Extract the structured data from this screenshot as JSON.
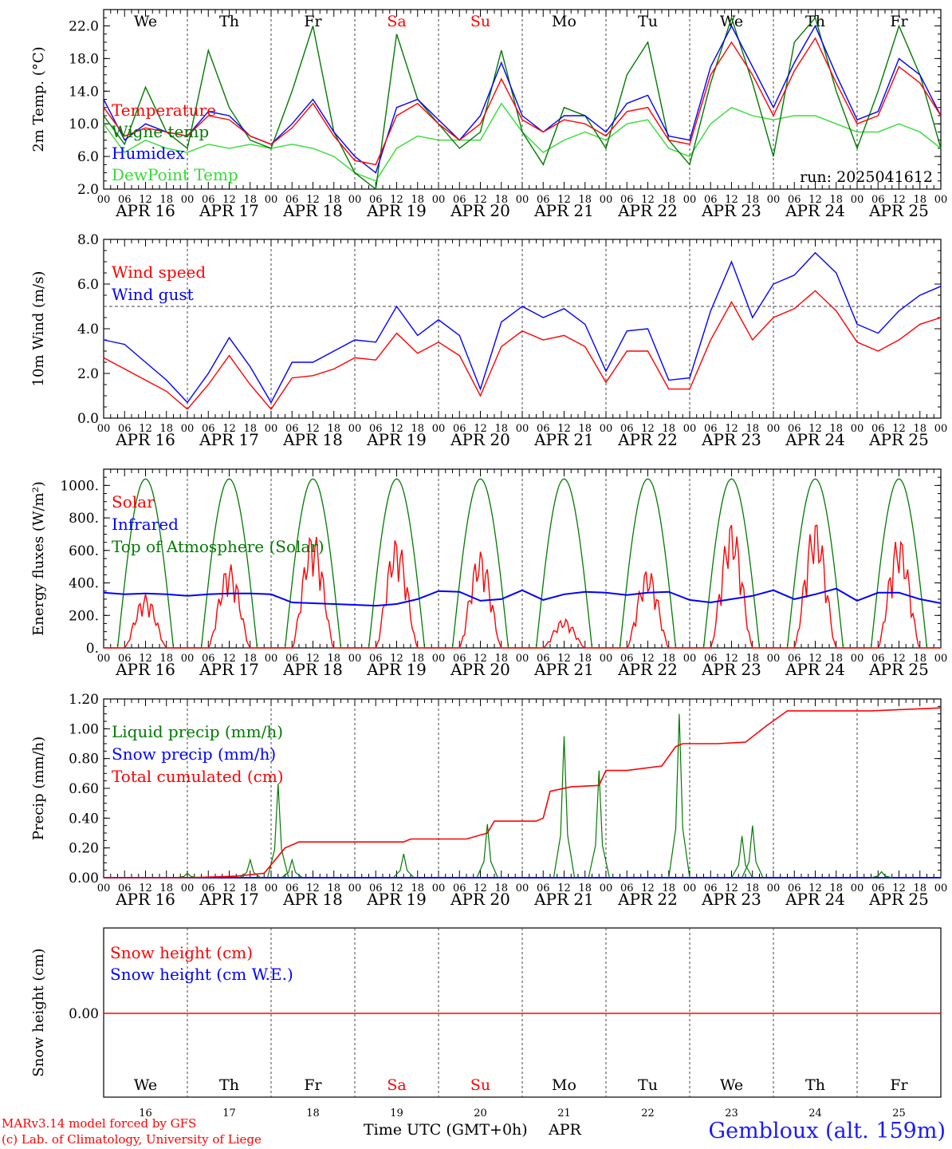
{
  "credits": {
    "line1": "MARv3.14 model forced by GFS",
    "line2": "(c) Lab. of Climatology, University of Liege"
  },
  "xaxis_label": "Time UTC (GMT+0h)",
  "month_label": "APR",
  "station": "Gembloux (alt. 159m)",
  "colors": {
    "red": "#ff0000",
    "dark_green": "#007a00",
    "blue": "#0000ff",
    "light_green": "#33dd33",
    "weekend": "#ff0000"
  },
  "chart_data": [
    {
      "type": "line",
      "ylabel": "2m Temp. (°C)",
      "ylim": [
        2,
        24
      ],
      "yticks": [
        "2.0",
        "6.0",
        "10.0",
        "14.0",
        "18.0",
        "22.0"
      ],
      "ytick_values": [
        2,
        6,
        10,
        14,
        18,
        22
      ],
      "annotation": "run: 2025041612",
      "weekdays": [
        {
          "label": "We",
          "weekend": false
        },
        {
          "label": "Th",
          "weekend": false
        },
        {
          "label": "Fr",
          "weekend": false
        },
        {
          "label": "Sa",
          "weekend": true
        },
        {
          "label": "Su",
          "weekend": true
        },
        {
          "label": "Mo",
          "weekend": false
        },
        {
          "label": "Tu",
          "weekend": false
        },
        {
          "label": "We",
          "weekend": false
        },
        {
          "label": "Th",
          "weekend": false
        },
        {
          "label": "Fr",
          "weekend": false
        }
      ],
      "x_hours": [
        0,
        6,
        12,
        18,
        24,
        30,
        36,
        42,
        48,
        54,
        60,
        66,
        72,
        78,
        84,
        90,
        96,
        102,
        108,
        114,
        120,
        126,
        132,
        138,
        144,
        150,
        156,
        162,
        168,
        174,
        180,
        186,
        192,
        198,
        204,
        210,
        216,
        222,
        228,
        234,
        240
      ],
      "series": [
        {
          "name": "Temperature",
          "color": "#ff0000",
          "values": [
            12,
            8.5,
            9.5,
            9,
            8.5,
            11,
            10.5,
            8.5,
            7.5,
            9.5,
            12.5,
            8.5,
            5.5,
            5,
            11,
            12.5,
            10,
            8,
            10,
            15.5,
            10.5,
            9,
            10.5,
            10,
            8.5,
            11.5,
            12,
            8,
            7.5,
            16,
            20,
            16,
            11,
            16.5,
            20.5,
            15,
            10,
            11,
            17,
            15,
            11
          ]
        },
        {
          "name": "Wigne temp",
          "color": "#007a00",
          "values": [
            11,
            7.5,
            14.5,
            9,
            7,
            19,
            12,
            8,
            7,
            14,
            22,
            9,
            4,
            2,
            21,
            13,
            10,
            7,
            9,
            19,
            9,
            5,
            12,
            11,
            7,
            16,
            20,
            8,
            5,
            15,
            23,
            15,
            6,
            20,
            23,
            14,
            7,
            14,
            22,
            16,
            7
          ]
        },
        {
          "name": "Humidex",
          "color": "#0000ff",
          "values": [
            13,
            8,
            10,
            9,
            8.5,
            11.5,
            11,
            8.5,
            7.5,
            10,
            13,
            9,
            6,
            4,
            12,
            13,
            10.5,
            8,
            11,
            17.5,
            11,
            9,
            11,
            11,
            9,
            12.5,
            13.5,
            8.5,
            8,
            17,
            22,
            17,
            12,
            17.5,
            22,
            16,
            10.5,
            11.5,
            18,
            16,
            11
          ]
        },
        {
          "name": "DewPoint Temp",
          "color": "#33dd33",
          "values": [
            10,
            6.5,
            8,
            7,
            6.5,
            7.5,
            7,
            7.5,
            7,
            7.5,
            7,
            6,
            4,
            3,
            7,
            8.5,
            8,
            8,
            8,
            12.5,
            9,
            6.5,
            8,
            9,
            8,
            10,
            10.5,
            7,
            6,
            10,
            12,
            11,
            10.5,
            11,
            11,
            10,
            9,
            9,
            10,
            9,
            7
          ]
        }
      ]
    },
    {
      "type": "line",
      "ylabel": "10m Wind (m/s)",
      "ylim": [
        0,
        8
      ],
      "yticks": [
        "0.0",
        "2.0",
        "4.0",
        "6.0",
        "8.0"
      ],
      "ytick_values": [
        0,
        2,
        4,
        6,
        8
      ],
      "reference_line": 5,
      "x_hours": [
        0,
        6,
        12,
        18,
        24,
        30,
        36,
        42,
        48,
        54,
        60,
        66,
        72,
        78,
        84,
        90,
        96,
        102,
        108,
        114,
        120,
        126,
        132,
        138,
        144,
        150,
        156,
        162,
        168,
        174,
        180,
        186,
        192,
        198,
        204,
        210,
        216,
        222,
        228,
        234,
        240
      ],
      "series": [
        {
          "name": "Wind speed",
          "color": "#ff0000",
          "values": [
            2.7,
            2.2,
            1.7,
            1.2,
            0.4,
            1.5,
            2.8,
            1.5,
            0.4,
            1.8,
            1.9,
            2.2,
            2.7,
            2.6,
            3.8,
            2.9,
            3.4,
            2.8,
            1,
            3.2,
            3.9,
            3.5,
            3.7,
            3.2,
            1.6,
            3,
            3,
            1.3,
            1.3,
            3.5,
            5.2,
            3.5,
            4.5,
            4.9,
            5.7,
            4.8,
            3.4,
            3,
            3.5,
            4.2,
            4.5
          ]
        },
        {
          "name": "Wind gust",
          "color": "#0000ff",
          "values": [
            3.5,
            3.3,
            2.5,
            1.7,
            0.7,
            2,
            3.6,
            2.3,
            0.7,
            2.5,
            2.5,
            3,
            3.5,
            3.4,
            5,
            3.7,
            4.4,
            3.7,
            1.3,
            4.3,
            5,
            4.5,
            4.9,
            4.2,
            2.1,
            3.9,
            4,
            1.7,
            1.8,
            4.8,
            7,
            4.5,
            6,
            6.4,
            7.4,
            6.5,
            4.2,
            3.8,
            4.8,
            5.5,
            5.9
          ]
        }
      ]
    },
    {
      "type": "line",
      "ylabel": "Energy fluxes (W/m²)",
      "ylim": [
        0,
        1100
      ],
      "yticks": [
        "0.",
        "200.",
        "400.",
        "600.",
        "800.",
        "1000."
      ],
      "ytick_values": [
        0,
        200,
        400,
        600,
        800,
        1000
      ],
      "solar_peaks": [
        330,
        520,
        720,
        680,
        600,
        180,
        490,
        780,
        790,
        690
      ],
      "infrared_values": [
        340,
        330,
        335,
        330,
        320,
        330,
        335,
        335,
        330,
        280,
        275,
        270,
        265,
        260,
        270,
        300,
        350,
        345,
        290,
        300,
        355,
        295,
        330,
        345,
        340,
        325,
        340,
        345,
        295,
        280,
        300,
        320,
        355,
        300,
        330,
        365,
        290,
        340,
        340,
        300,
        275
      ],
      "toa_peak": 1040,
      "series": [
        {
          "name": "Solar",
          "color": "#ff0000"
        },
        {
          "name": "Infrared",
          "color": "#0000ff"
        },
        {
          "name": "Top of Atmosphere (Solar)",
          "color": "#007a00"
        }
      ]
    },
    {
      "type": "line",
      "ylabel": "Precip (mm/h)",
      "ylim": [
        0,
        1.2
      ],
      "yticks": [
        "0.00",
        "0.20",
        "0.40",
        "0.60",
        "0.80",
        "1.00",
        "1.20"
      ],
      "ytick_values": [
        0,
        0.2,
        0.4,
        0.6,
        0.8,
        1.0,
        1.2
      ],
      "liquid_spikes": [
        {
          "hour": 24,
          "value": 0.03
        },
        {
          "hour": 42,
          "value": 0.12
        },
        {
          "hour": 50,
          "value": 0.63
        },
        {
          "hour": 54,
          "value": 0.12
        },
        {
          "hour": 86,
          "value": 0.16
        },
        {
          "hour": 110,
          "value": 0.36
        },
        {
          "hour": 132,
          "value": 0.95
        },
        {
          "hour": 142,
          "value": 0.72
        },
        {
          "hour": 165,
          "value": 1.1
        },
        {
          "hour": 183,
          "value": 0.28
        },
        {
          "hour": 186,
          "value": 0.35
        },
        {
          "hour": 223,
          "value": 0.04
        }
      ],
      "cumulative": {
        "x_hours": [
          0,
          24,
          38,
          46,
          52,
          56,
          66,
          86,
          88,
          104,
          110,
          112,
          124,
          126,
          128,
          134,
          142,
          144,
          150,
          160,
          164,
          166,
          176,
          184,
          190,
          196,
          220,
          240
        ],
        "values": [
          0,
          0,
          0.01,
          0.03,
          0.2,
          0.24,
          0.24,
          0.24,
          0.26,
          0.26,
          0.3,
          0.38,
          0.38,
          0.4,
          0.58,
          0.61,
          0.62,
          0.72,
          0.72,
          0.75,
          0.88,
          0.9,
          0.9,
          0.91,
          1.02,
          1.12,
          1.12,
          1.14
        ]
      },
      "series": [
        {
          "name": "Liquid precip (mm/h)",
          "color": "#007a00"
        },
        {
          "name": "Snow precip (mm/h)",
          "color": "#0000ff"
        },
        {
          "name": "Total cumulated (cm)",
          "color": "#ff0000"
        }
      ]
    },
    {
      "type": "line",
      "ylabel": "Snow height (cm)",
      "yticks": [
        "0.00"
      ],
      "ytick_values": [
        0
      ],
      "weekdays": [
        {
          "label": "We",
          "weekend": false
        },
        {
          "label": "Th",
          "weekend": false
        },
        {
          "label": "Fr",
          "weekend": false
        },
        {
          "label": "Sa",
          "weekend": true
        },
        {
          "label": "Su",
          "weekend": true
        },
        {
          "label": "Mo",
          "weekend": false
        },
        {
          "label": "Tu",
          "weekend": false
        },
        {
          "label": "We",
          "weekend": false
        },
        {
          "label": "Th",
          "weekend": false
        },
        {
          "label": "Fr",
          "weekend": false
        }
      ],
      "day_numbers": [
        "16",
        "17",
        "18",
        "19",
        "20",
        "21",
        "22",
        "23",
        "24",
        "25"
      ],
      "series": [
        {
          "name": "Snow height (cm)",
          "color": "#ff0000",
          "values": [
            0,
            0
          ]
        },
        {
          "name": "Snow height (cm W.E.)",
          "color": "#0000ff"
        }
      ]
    }
  ],
  "date_labels": [
    "APR 16",
    "APR 17",
    "APR 18",
    "APR 19",
    "APR 20",
    "APR 21",
    "APR 22",
    "APR 23",
    "APR 24",
    "APR 25"
  ],
  "hour_tick_labels": [
    "00",
    "06",
    "12",
    "18"
  ]
}
